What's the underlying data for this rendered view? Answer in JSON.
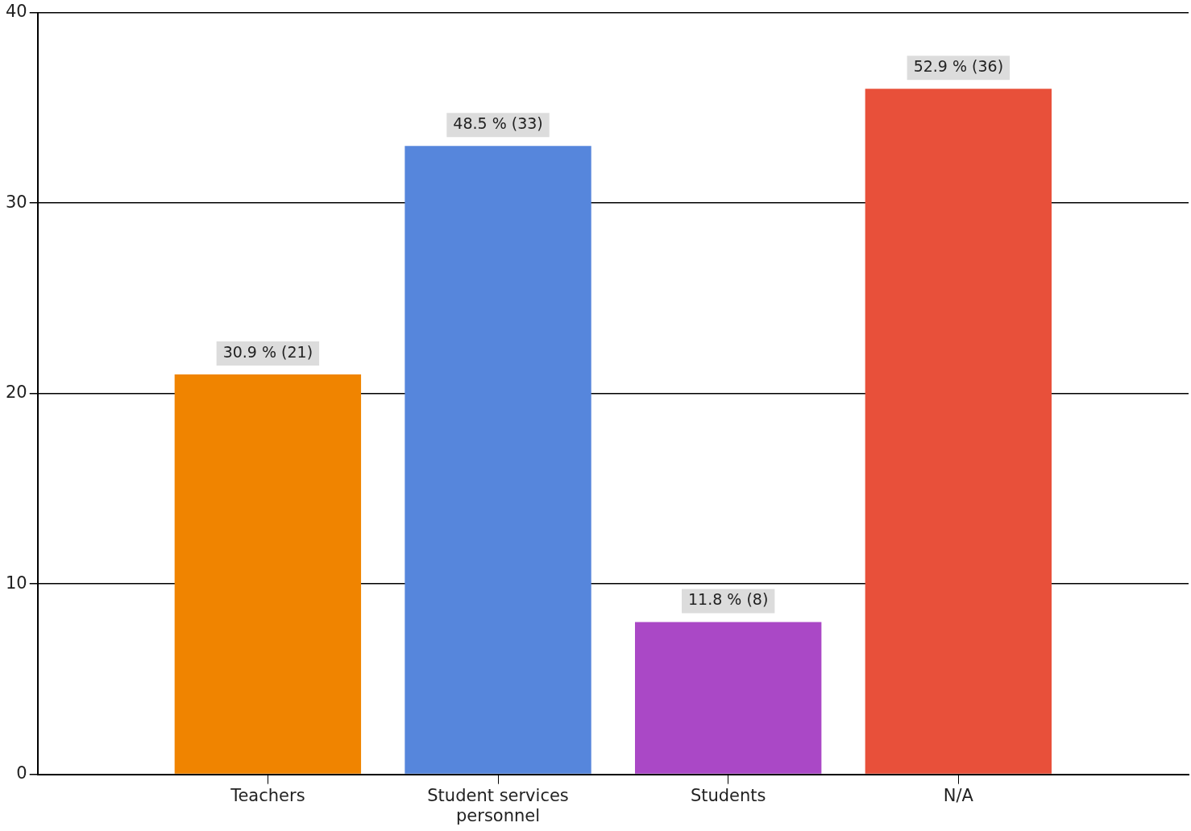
{
  "chart_data": {
    "type": "bar",
    "categories": [
      "Teachers",
      "Student services personnel",
      "Students",
      "N/A"
    ],
    "values": [
      21,
      33,
      8,
      36
    ],
    "colors": [
      "#f08400",
      "#5686dc",
      "#aa48c6",
      "#e8503a"
    ],
    "value_labels": [
      "30.9 % (21)",
      "48.5 % (33)",
      "11.8 % (8)",
      "52.9 % (36)"
    ],
    "ylim": [
      0,
      40
    ],
    "yticks": [
      0,
      10,
      20,
      30,
      40
    ],
    "grid": "y",
    "legend": false
  }
}
